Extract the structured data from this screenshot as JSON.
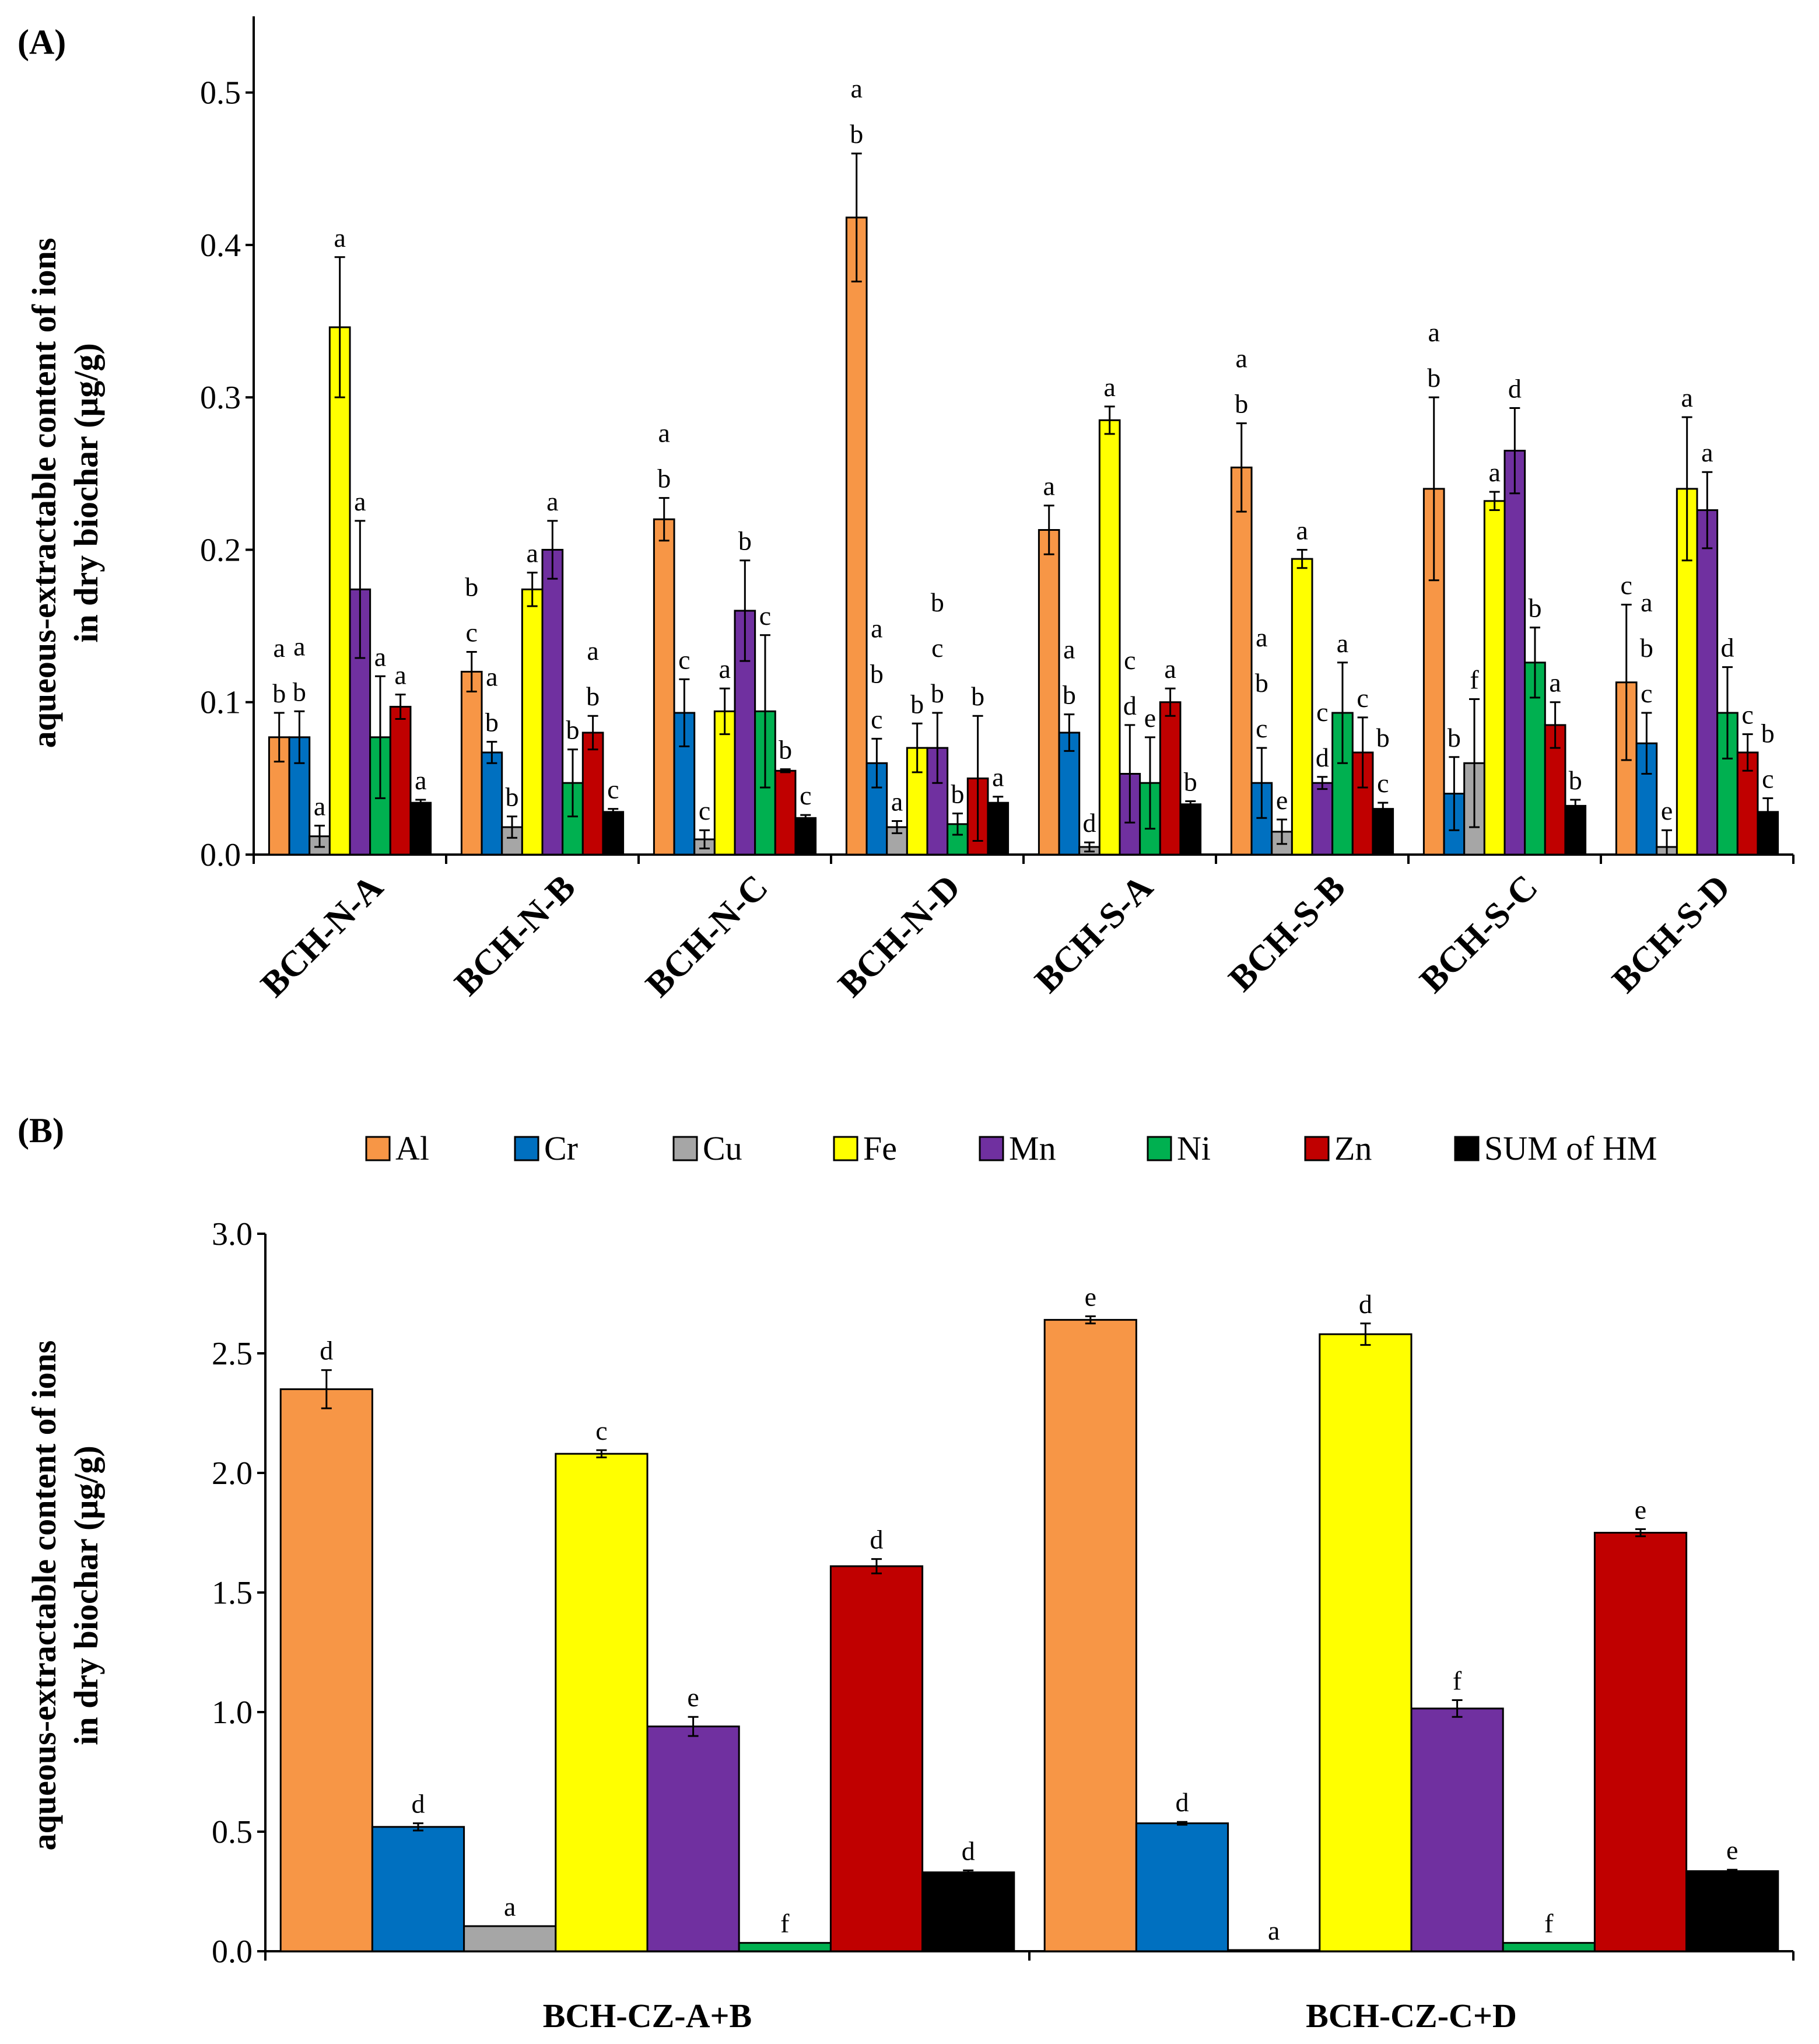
{
  "figure": {
    "legend": {
      "items": [
        {
          "name": "Al",
          "color": "#F79646"
        },
        {
          "name": "Cr",
          "color": "#0070C0"
        },
        {
          "name": "Cu",
          "color": "#A6A6A6"
        },
        {
          "name": "Fe",
          "color": "#FFFF00"
        },
        {
          "name": "Mn",
          "color": "#7030A0"
        },
        {
          "name": "Ni",
          "color": "#00B050"
        },
        {
          "name": "Zn",
          "color": "#C00000"
        },
        {
          "name": "SUM of HM",
          "color": "#000000"
        }
      ]
    }
  },
  "chart_data": [
    {
      "panel": "(A)",
      "type": "bar",
      "ylabel": [
        "aqueous-extractable content of ions",
        "in dry biochar (μg/g)"
      ],
      "ylim": [
        0,
        0.55
      ],
      "yticks": [
        "0.0",
        "0.1",
        "0.2",
        "0.3",
        "0.4",
        "0.5"
      ],
      "ytick_values": [
        0,
        0.1,
        0.2,
        0.3,
        0.4,
        0.5
      ],
      "categories": [
        "BCH-N-A",
        "BCH-N-B",
        "BCH-N-C",
        "BCH-N-D",
        "BCH-S-A",
        "BCH-S-B",
        "BCH-S-C",
        "BCH-S-D"
      ],
      "series": [
        {
          "name": "Al",
          "values": [
            0.077,
            0.12,
            0.22,
            0.418,
            0.213,
            0.254,
            0.24,
            0.113
          ],
          "errors": [
            0.016,
            0.013,
            0.014,
            0.042,
            0.016,
            0.029,
            0.06,
            0.051
          ],
          "letters": [
            [
              "a",
              "b"
            ],
            [
              "b",
              "c"
            ],
            [
              "a",
              "b"
            ],
            [
              "a",
              "b"
            ],
            [
              "a"
            ],
            [
              "a",
              "b"
            ],
            [
              "a",
              "b"
            ],
            [
              "c"
            ]
          ]
        },
        {
          "name": "Cr",
          "values": [
            0.077,
            0.067,
            0.093,
            0.06,
            0.08,
            0.047,
            0.04,
            0.073
          ],
          "errors": [
            0.017,
            0.007,
            0.022,
            0.016,
            0.012,
            0.023,
            0.024,
            0.02
          ],
          "letters": [
            [
              "a",
              "b"
            ],
            [
              "a",
              "b"
            ],
            [
              "c"
            ],
            [
              "a",
              "b",
              "c"
            ],
            [
              "a",
              "b"
            ],
            [
              "a",
              "b",
              "c"
            ],
            [
              "b"
            ],
            [
              "a",
              "b",
              "c"
            ]
          ]
        },
        {
          "name": "Cu",
          "values": [
            0.012,
            0.018,
            0.01,
            0.018,
            0.005,
            0.015,
            0.06,
            0.005
          ],
          "errors": [
            0.007,
            0.007,
            0.006,
            0.004,
            0.003,
            0.008,
            0.042,
            0.011
          ],
          "letters": [
            [
              "a"
            ],
            [
              "b"
            ],
            [
              "c"
            ],
            [
              "a"
            ],
            [
              "d"
            ],
            [
              "e"
            ],
            [
              "f"
            ],
            [
              "e"
            ]
          ]
        },
        {
          "name": "Fe",
          "values": [
            0.346,
            0.174,
            0.094,
            0.07,
            0.285,
            0.194,
            0.232,
            0.24
          ],
          "errors": [
            0.046,
            0.011,
            0.015,
            0.016,
            0.009,
            0.006,
            0.006,
            0.047
          ],
          "letters": [
            [
              "a"
            ],
            [
              "a"
            ],
            [
              "a"
            ],
            [
              "b"
            ],
            [
              "a"
            ],
            [
              "a"
            ],
            [
              "a"
            ],
            [
              "a"
            ]
          ]
        },
        {
          "name": "Mn",
          "values": [
            0.174,
            0.2,
            0.16,
            0.07,
            0.053,
            0.047,
            0.265,
            0.226
          ],
          "errors": [
            0.045,
            0.019,
            0.033,
            0.023,
            0.032,
            0.004,
            0.028,
            0.025
          ],
          "letters": [
            [
              "a"
            ],
            [
              "a"
            ],
            [
              "b"
            ],
            [
              "b",
              "c",
              "b"
            ],
            [
              "c",
              "d"
            ],
            [
              "c",
              "d"
            ],
            [
              "d"
            ],
            [
              "a"
            ]
          ]
        },
        {
          "name": "Ni",
          "values": [
            0.077,
            0.047,
            0.094,
            0.02,
            0.047,
            0.093,
            0.126,
            0.093
          ],
          "errors": [
            0.04,
            0.022,
            0.05,
            0.007,
            0.03,
            0.033,
            0.023,
            0.03
          ],
          "letters": [
            [
              "a"
            ],
            [
              "b"
            ],
            [
              "c"
            ],
            [
              "b"
            ],
            [
              "e"
            ],
            [
              "a"
            ],
            [
              "b"
            ],
            [
              "d"
            ]
          ]
        },
        {
          "name": "Zn",
          "values": [
            0.097,
            0.08,
            0.055,
            0.05,
            0.1,
            0.067,
            0.085,
            0.067
          ],
          "errors": [
            0.008,
            0.011,
            0.001,
            0.041,
            0.009,
            0.023,
            0.015,
            0.012
          ],
          "letters": [
            [
              "a"
            ],
            [
              "a",
              "b"
            ],
            [
              "b"
            ],
            [
              "b"
            ],
            [
              "a"
            ],
            [
              "c"
            ],
            [
              "a"
            ],
            [
              "c"
            ]
          ]
        },
        {
          "name": "SUM of HM",
          "values": [
            0.034,
            0.028,
            0.024,
            0.034,
            0.033,
            0.03,
            0.032,
            0.028
          ],
          "errors": [
            0.002,
            0.002,
            0.002,
            0.004,
            0.002,
            0.004,
            0.004,
            0.009
          ],
          "letters": [
            [
              "a"
            ],
            [
              "c"
            ],
            [
              "c"
            ],
            [
              "a"
            ],
            [
              "b"
            ],
            [
              "b",
              "c"
            ],
            [
              "b"
            ],
            [
              "b",
              "c"
            ]
          ]
        }
      ]
    },
    {
      "panel": "(B)",
      "type": "bar",
      "ylabel": [
        "aqueous-extractable content of ions",
        "in dry biochar (μg/g)"
      ],
      "ylim": [
        0,
        3.0
      ],
      "yticks": [
        "0.0",
        "0.5",
        "1.0",
        "1.5",
        "2.0",
        "2.5",
        "3.0"
      ],
      "ytick_values": [
        0,
        0.5,
        1.0,
        1.5,
        2.0,
        2.5,
        3.0
      ],
      "categories": [
        "BCH-CZ-A+B",
        "BCH-CZ-C+D"
      ],
      "series": [
        {
          "name": "Al",
          "values": [
            2.35,
            2.64
          ],
          "errors": [
            0.08,
            0.015
          ],
          "letters": [
            [
              "d"
            ],
            [
              "e"
            ]
          ]
        },
        {
          "name": "Cr",
          "values": [
            0.52,
            0.535
          ],
          "errors": [
            0.015,
            0.006
          ],
          "letters": [
            [
              "d"
            ],
            [
              "d"
            ]
          ]
        },
        {
          "name": "Cu",
          "values": [
            0.105,
            0.005
          ],
          "errors": [
            0,
            0
          ],
          "letters": [
            [
              "a"
            ],
            [
              "a"
            ]
          ]
        },
        {
          "name": "Fe",
          "values": [
            2.08,
            2.58
          ],
          "errors": [
            0.015,
            0.045
          ],
          "letters": [
            [
              "c"
            ],
            [
              "d"
            ]
          ]
        },
        {
          "name": "Mn",
          "values": [
            0.94,
            1.015
          ],
          "errors": [
            0.04,
            0.035
          ],
          "letters": [
            [
              "e"
            ],
            [
              "f"
            ]
          ]
        },
        {
          "name": "Ni",
          "values": [
            0.035,
            0.035
          ],
          "errors": [
            0,
            0
          ],
          "letters": [
            [
              "f"
            ],
            [
              "f"
            ]
          ]
        },
        {
          "name": "Zn",
          "values": [
            1.61,
            1.75
          ],
          "errors": [
            0.03,
            0.015
          ],
          "letters": [
            [
              "d"
            ],
            [
              "e"
            ]
          ]
        },
        {
          "name": "SUM of HM",
          "values": [
            0.33,
            0.335
          ],
          "errors": [
            0.008,
            0.006
          ],
          "letters": [
            [
              "d"
            ],
            [
              "e"
            ]
          ]
        }
      ]
    }
  ]
}
